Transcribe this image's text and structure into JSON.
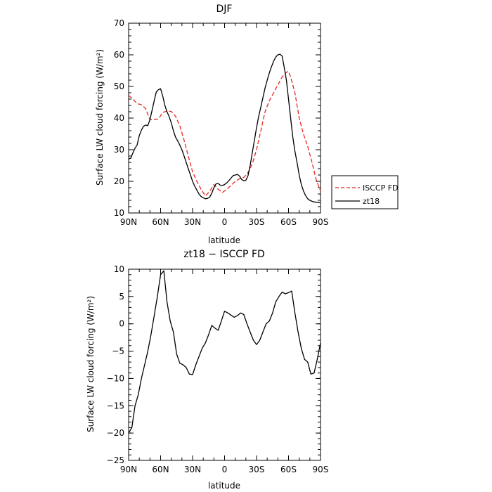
{
  "chart_data": [
    {
      "type": "line",
      "title": "DJF",
      "xlabel": "latitude",
      "ylabel": "Surface LW cloud forcing (W/m²)",
      "ylim": [
        10,
        70
      ],
      "xlim": [
        90,
        -90
      ],
      "x_ticks": [
        90,
        60,
        30,
        0,
        -30,
        -60,
        -90
      ],
      "x_tick_labels": [
        "90N",
        "60N",
        "30N",
        "0",
        "30S",
        "60S",
        "90S"
      ],
      "y_ticks": [
        10,
        20,
        30,
        40,
        50,
        60,
        70
      ],
      "y_tick_labels": [
        "10",
        "20",
        "30",
        "40",
        "50",
        "60",
        "70"
      ],
      "grid": false,
      "legend": "outside-right",
      "series": [
        {
          "name": "ISCCP FD",
          "color": "#e8281e",
          "dash": "dashed",
          "x": [
            90,
            86,
            82,
            78,
            74,
            70,
            66,
            62,
            58,
            54,
            50,
            46,
            42,
            38,
            34,
            30,
            26,
            22,
            18,
            14,
            10,
            6,
            2,
            -2,
            -6,
            -10,
            -14,
            -18,
            -22,
            -26,
            -30,
            -34,
            -38,
            -42,
            -46,
            -50,
            -54,
            -58,
            -60,
            -62,
            -66,
            -70,
            -74,
            -78,
            -82,
            -86,
            -90
          ],
          "y": [
            47.2,
            46.0,
            44.6,
            44.2,
            43.0,
            39.5,
            39.6,
            39.7,
            41.8,
            42.2,
            42.1,
            40.6,
            37.6,
            33.0,
            28.0,
            23.0,
            20.0,
            17.5,
            15.4,
            16.8,
            19.0,
            17.5,
            16.5,
            17.5,
            18.7,
            20.0,
            20.8,
            21.2,
            22.8,
            25.5,
            30.0,
            36.0,
            42.0,
            45.5,
            48.0,
            50.5,
            53.0,
            54.5,
            54.8,
            53.0,
            48.0,
            40.0,
            35.0,
            31.0,
            26.0,
            20.5,
            17.0
          ]
        },
        {
          "name": "zt18",
          "color": "#000000",
          "dash": "solid",
          "x": [
            90,
            88,
            86,
            84,
            82,
            80,
            78,
            76,
            74,
            72,
            70,
            68,
            66,
            64,
            62,
            60,
            58,
            56,
            54,
            52,
            50,
            48,
            46,
            44,
            42,
            40,
            38,
            36,
            34,
            32,
            30,
            28,
            26,
            24,
            22,
            20,
            18,
            16,
            14,
            12,
            10,
            8,
            6,
            4,
            2,
            0,
            -2,
            -4,
            -6,
            -8,
            -10,
            -12,
            -14,
            -16,
            -18,
            -20,
            -22,
            -24,
            -26,
            -28,
            -30,
            -32,
            -34,
            -36,
            -38,
            -40,
            -42,
            -44,
            -46,
            -48,
            -50,
            -52,
            -54,
            -56,
            -58,
            -60,
            -62,
            -64,
            -66,
            -68,
            -70,
            -72,
            -74,
            -76,
            -78,
            -80,
            -82,
            -84,
            -86,
            -88,
            -90
          ],
          "y": [
            27.1,
            27.3,
            29.0,
            30.5,
            31.5,
            34.5,
            36.2,
            37.4,
            37.8,
            37.6,
            39.5,
            42.5,
            45.5,
            48.3,
            49.0,
            49.3,
            47.0,
            44.0,
            42.0,
            40.5,
            38.5,
            36.0,
            34.0,
            32.8,
            31.5,
            30.0,
            28.0,
            26.0,
            24.0,
            22.0,
            20.0,
            18.5,
            17.2,
            16.0,
            15.2,
            14.8,
            14.5,
            14.6,
            15.0,
            16.2,
            18.0,
            19.2,
            19.3,
            18.8,
            18.7,
            19.0,
            19.5,
            20.2,
            21.0,
            21.8,
            22.0,
            22.2,
            21.7,
            20.6,
            20.2,
            20.3,
            21.8,
            25.0,
            29.0,
            33.0,
            37.0,
            40.5,
            43.5,
            46.5,
            49.5,
            52.0,
            54.3,
            56.2,
            58.0,
            59.3,
            60.0,
            60.2,
            59.6,
            56.0,
            52.0,
            46.0,
            40.0,
            34.0,
            29.5,
            26.0,
            22.0,
            19.0,
            17.0,
            15.5,
            14.5,
            14.0,
            13.7,
            13.5,
            13.4,
            13.3,
            13.2
          ]
        }
      ]
    },
    {
      "type": "line",
      "title": "zt18 − ISCCP FD",
      "xlabel": "latitude",
      "ylabel": "Surface LW cloud forcing (W/m²)",
      "ylim": [
        -25,
        10
      ],
      "xlim": [
        90,
        -90
      ],
      "x_ticks": [
        90,
        60,
        30,
        0,
        -30,
        -60,
        -90
      ],
      "x_tick_labels": [
        "90N",
        "60N",
        "30N",
        "0",
        "30S",
        "60S",
        "90S"
      ],
      "y_ticks": [
        -25,
        -20,
        -15,
        -10,
        -5,
        0,
        5,
        10
      ],
      "y_tick_labels": [
        "−25",
        "−20",
        "−15",
        "−10",
        "−5",
        "0",
        "5",
        "10"
      ],
      "grid": false,
      "legend": "none",
      "series": [
        {
          "color": "#000000",
          "dash": "solid",
          "x": [
            90,
            87,
            84,
            81,
            78,
            75,
            72,
            69,
            66,
            63,
            60,
            57,
            54,
            51,
            48,
            45,
            42,
            39,
            36,
            33,
            30,
            27,
            24,
            21,
            18,
            15,
            12,
            9,
            6,
            3,
            0,
            -3,
            -6,
            -9,
            -12,
            -15,
            -18,
            -21,
            -24,
            -27,
            -30,
            -33,
            -36,
            -39,
            -42,
            -45,
            -48,
            -51,
            -54,
            -57,
            -60,
            -63,
            -66,
            -69,
            -72,
            -75,
            -78,
            -81,
            -84,
            -87,
            -90
          ],
          "y": [
            -20.0,
            -19.0,
            -15.0,
            -13.0,
            -10.0,
            -7.5,
            -5.0,
            -2.0,
            1.5,
            5.0,
            9.0,
            9.7,
            4.0,
            0.5,
            -1.5,
            -5.5,
            -7.2,
            -7.5,
            -8.0,
            -9.2,
            -9.3,
            -7.5,
            -6.0,
            -4.5,
            -3.5,
            -2.0,
            -0.3,
            -0.8,
            -1.2,
            0.5,
            2.3,
            2.0,
            1.6,
            1.2,
            1.5,
            2.0,
            1.7,
            0.0,
            -1.5,
            -3.0,
            -3.8,
            -3.0,
            -1.5,
            0.0,
            0.5,
            2.0,
            4.0,
            5.0,
            5.8,
            5.5,
            5.7,
            6.0,
            2.0,
            -1.5,
            -4.5,
            -6.5,
            -7.0,
            -9.2,
            -9.0,
            -6.5,
            -3.5
          ]
        }
      ]
    }
  ]
}
